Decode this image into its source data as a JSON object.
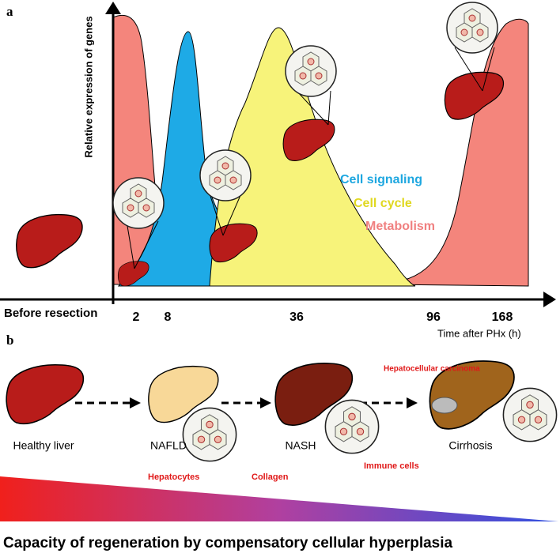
{
  "panel_a": {
    "label": "a",
    "y_axis_label": "Relative expression of genes",
    "x_axis_label": "Time after PHx (h)",
    "before": "Before resection",
    "time_labels": [
      "2",
      "8",
      "36",
      "96",
      "168"
    ],
    "legend": [
      "Cell signaling",
      "Cell cycle",
      "Metabolism"
    ]
  },
  "panel_b": {
    "label": "b",
    "stages": [
      "Healthy liver",
      "NAFLD",
      "NASH",
      "Cirrhosis"
    ],
    "annotations": [
      "Hepatocytes",
      "Collagen",
      "Immune cells",
      "Hepatocellular carcinoma"
    ]
  },
  "footer": "Capacity of regeneration by compensatory cellular hyperplasia"
}
